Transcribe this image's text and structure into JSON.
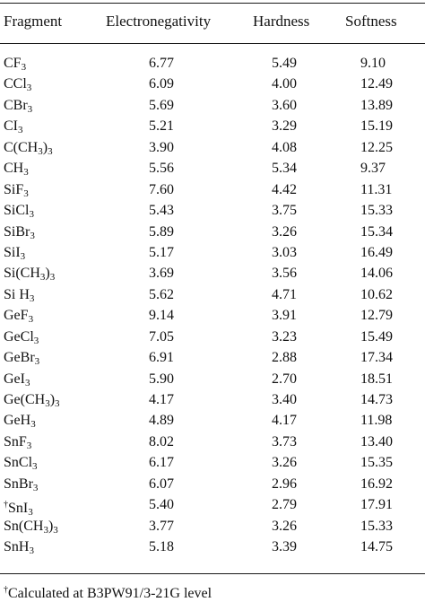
{
  "table": {
    "headers": [
      "Fragment",
      "Electronegativity",
      "Hardness",
      "Softness"
    ],
    "rows": [
      {
        "fragment": "CF3",
        "frag": [
          {
            "t": "CF"
          },
          {
            "t": "3",
            "sub": true
          }
        ],
        "en": "6.77",
        "hard": "5.49",
        "soft": "9.10"
      },
      {
        "fragment": "CCl3",
        "frag": [
          {
            "t": "CCl"
          },
          {
            "t": "3",
            "sub": true
          }
        ],
        "en": "6.09",
        "hard": "4.00",
        "soft": "12.49"
      },
      {
        "fragment": "CBr3",
        "frag": [
          {
            "t": "CBr"
          },
          {
            "t": "3",
            "sub": true
          }
        ],
        "en": "5.69",
        "hard": "3.60",
        "soft": "13.89"
      },
      {
        "fragment": "CI3",
        "frag": [
          {
            "t": "CI"
          },
          {
            "t": "3",
            "sub": true
          }
        ],
        "en": "5.21",
        "hard": "3.29",
        "soft": "15.19"
      },
      {
        "fragment": "C(CH3)3",
        "frag": [
          {
            "t": "C(CH"
          },
          {
            "t": "3",
            "sub": true
          },
          {
            "t": ")"
          },
          {
            "t": "3",
            "sub": true
          }
        ],
        "en": "3.90",
        "hard": "4.08",
        "soft": "12.25"
      },
      {
        "fragment": "CH3",
        "frag": [
          {
            "t": "CH"
          },
          {
            "t": "3",
            "sub": true
          }
        ],
        "en": "5.56",
        "hard": "5.34",
        "soft": "9.37"
      },
      {
        "fragment": "SiF3",
        "frag": [
          {
            "t": "SiF"
          },
          {
            "t": "3",
            "sub": true
          }
        ],
        "en": "7.60",
        "hard": "4.42",
        "soft": "11.31"
      },
      {
        "fragment": "SiCl3",
        "frag": [
          {
            "t": "SiCl"
          },
          {
            "t": "3",
            "sub": true
          }
        ],
        "en": "5.43",
        "hard": "3.75",
        "soft": "15.33"
      },
      {
        "fragment": "SiBr3",
        "frag": [
          {
            "t": "SiBr"
          },
          {
            "t": "3",
            "sub": true
          }
        ],
        "en": "5.89",
        "hard": "3.26",
        "soft": "15.34"
      },
      {
        "fragment": "SiI3",
        "frag": [
          {
            "t": "SiI"
          },
          {
            "t": "3",
            "sub": true
          }
        ],
        "en": "5.17",
        "hard": "3.03",
        "soft": "16.49"
      },
      {
        "fragment": "Si(CH3)3",
        "frag": [
          {
            "t": "Si(CH"
          },
          {
            "t": "3",
            "sub": true
          },
          {
            "t": ")"
          },
          {
            "t": "3",
            "sub": true
          }
        ],
        "en": "3.69",
        "hard": "3.56",
        "soft": "14.06"
      },
      {
        "fragment": "Si H3",
        "frag": [
          {
            "t": "Si H"
          },
          {
            "t": "3",
            "sub": true
          }
        ],
        "en": "5.62",
        "hard": "4.71",
        "soft": "10.62"
      },
      {
        "fragment": "GeF3",
        "frag": [
          {
            "t": "GeF"
          },
          {
            "t": "3",
            "sub": true
          }
        ],
        "en": "9.14",
        "hard": "3.91",
        "soft": "12.79"
      },
      {
        "fragment": "GeCl3",
        "frag": [
          {
            "t": "GeCl"
          },
          {
            "t": "3",
            "sub": true
          }
        ],
        "en": "7.05",
        "hard": "3.23",
        "soft": "15.49"
      },
      {
        "fragment": "GeBr3",
        "frag": [
          {
            "t": "GeBr"
          },
          {
            "t": "3",
            "sub": true
          }
        ],
        "en": "6.91",
        "hard": "2.88",
        "soft": "17.34"
      },
      {
        "fragment": "GeI3",
        "frag": [
          {
            "t": "GeI"
          },
          {
            "t": "3",
            "sub": true
          }
        ],
        "en": "5.90",
        "hard": "2.70",
        "soft": "18.51"
      },
      {
        "fragment": "Ge(CH3)3",
        "frag": [
          {
            "t": "Ge(CH"
          },
          {
            "t": "3",
            "sub": true
          },
          {
            "t": ")"
          },
          {
            "t": "3",
            "sub": true
          }
        ],
        "en": "4.17",
        "hard": "3.40",
        "soft": "14.73"
      },
      {
        "fragment": "GeH3",
        "frag": [
          {
            "t": "GeH"
          },
          {
            "t": "3",
            "sub": true
          }
        ],
        "en": "4.89",
        "hard": "4.17",
        "soft": "11.98"
      },
      {
        "fragment": "SnF3",
        "frag": [
          {
            "t": "SnF"
          },
          {
            "t": "3",
            "sub": true
          }
        ],
        "en": "8.02",
        "hard": "3.73",
        "soft": "13.40"
      },
      {
        "fragment": "SnCl3",
        "frag": [
          {
            "t": "SnCl"
          },
          {
            "t": "3",
            "sub": true
          }
        ],
        "en": "6.17",
        "hard": "3.26",
        "soft": "15.35"
      },
      {
        "fragment": "SnBr3",
        "frag": [
          {
            "t": "SnBr"
          },
          {
            "t": "3",
            "sub": true
          }
        ],
        "en": "6.07",
        "hard": "2.96",
        "soft": "16.92"
      },
      {
        "fragment": "†SnI3",
        "frag": [
          {
            "t": "†",
            "sup": true
          },
          {
            "t": "SnI"
          },
          {
            "t": "3",
            "sub": true
          }
        ],
        "en": "5.40",
        "hard": "2.79",
        "soft": "17.91"
      },
      {
        "fragment": "Sn(CH3)3",
        "frag": [
          {
            "t": "Sn(CH"
          },
          {
            "t": "3",
            "sub": true
          },
          {
            "t": ")"
          },
          {
            "t": "3",
            "sub": true
          }
        ],
        "en": "3.77",
        "hard": "3.26",
        "soft": "15.33"
      },
      {
        "fragment": "SnH3",
        "frag": [
          {
            "t": "SnH"
          },
          {
            "t": "3",
            "sub": true
          }
        ],
        "en": "5.18",
        "hard": "3.39",
        "soft": "14.75"
      }
    ]
  },
  "footnote": {
    "mark": "†",
    "text": "Calculated at B3PW91/3-21G level"
  }
}
